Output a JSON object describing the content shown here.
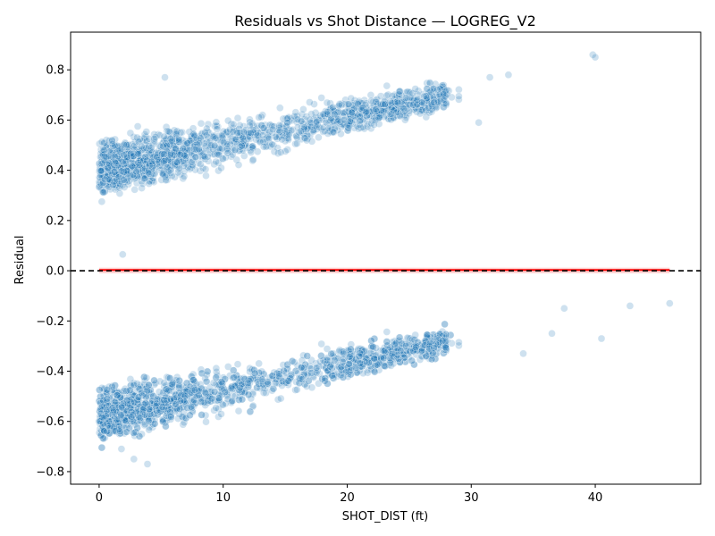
{
  "chart_data": {
    "type": "scatter",
    "title": "Residuals vs Shot Distance — LOGREG_V2",
    "xlabel": "SHOT_DIST (ft)",
    "ylabel": "Residual",
    "xlim": [
      -2.3,
      48.5
    ],
    "ylim": [
      -0.85,
      0.95
    ],
    "xticks": [
      0,
      10,
      20,
      30,
      40
    ],
    "yticks": [
      -0.8,
      -0.6,
      -0.4,
      -0.2,
      0.0,
      0.2,
      0.4,
      0.6,
      0.8
    ],
    "xtick_labels": [
      "0",
      "10",
      "20",
      "30",
      "40"
    ],
    "ytick_labels": [
      "−0.8",
      "−0.6",
      "−0.4",
      "−0.2",
      "0.0",
      "0.2",
      "0.4",
      "0.6",
      "0.8"
    ],
    "grid": false,
    "reference_line": {
      "y": 0.0,
      "style": "dashed",
      "color": "#000000"
    },
    "smooth_line": {
      "x": [
        0,
        46
      ],
      "y": [
        0.003,
        0.003
      ],
      "color": "#ff0000"
    },
    "series": [
      {
        "color": "#1f77b4",
        "clusters": [
          {
            "x_range": [
              0,
              29
            ],
            "y_mid_start": 0.4,
            "y_mid_end": 0.7,
            "y_spread": 0.08
          },
          {
            "x_range": [
              0,
              29
            ],
            "y_mid_start": -0.58,
            "y_mid_end": -0.28,
            "y_spread": 0.08
          }
        ],
        "points": [
          {
            "x": 5.3,
            "y": 0.77
          },
          {
            "x": 39.8,
            "y": 0.86
          },
          {
            "x": 40.0,
            "y": 0.85
          },
          {
            "x": 33.0,
            "y": 0.78
          },
          {
            "x": 31.5,
            "y": 0.77
          },
          {
            "x": 30.6,
            "y": 0.59
          },
          {
            "x": 1.9,
            "y": 0.065
          },
          {
            "x": 46.0,
            "y": -0.13
          },
          {
            "x": 42.8,
            "y": -0.14
          },
          {
            "x": 40.5,
            "y": -0.27
          },
          {
            "x": 37.5,
            "y": -0.15
          },
          {
            "x": 36.5,
            "y": -0.25
          },
          {
            "x": 34.2,
            "y": -0.33
          },
          {
            "x": 2.8,
            "y": -0.75
          },
          {
            "x": 3.9,
            "y": -0.77
          },
          {
            "x": 1.8,
            "y": -0.71
          }
        ]
      }
    ]
  }
}
